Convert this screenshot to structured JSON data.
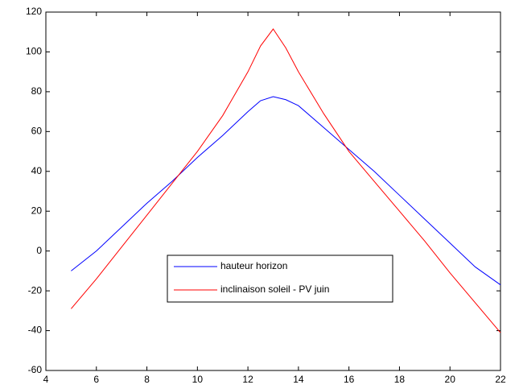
{
  "chart_data": {
    "type": "line",
    "x": [
      5,
      6,
      7,
      8,
      9,
      10,
      11,
      12,
      12.5,
      13,
      13.5,
      14,
      15,
      16,
      17,
      18,
      19,
      20,
      21,
      22
    ],
    "series": [
      {
        "name": "hauteur horizon",
        "color": "#0000ff",
        "values": [
          -10,
          0,
          12,
          24,
          35,
          47,
          58,
          70,
          75.5,
          77.5,
          76,
          73,
          62,
          51,
          40,
          28,
          16,
          4,
          -8,
          -17
        ]
      },
      {
        "name": "inclinaison soleil - PV juin",
        "color": "#ff0000",
        "values": [
          -29,
          -14,
          2,
          18,
          34,
          50,
          68,
          90,
          103,
          111.5,
          102,
          90,
          69,
          50,
          35,
          20,
          5,
          -11,
          -26,
          -41
        ]
      }
    ],
    "xlim": [
      4,
      22
    ],
    "xticks": [
      4,
      6,
      8,
      10,
      12,
      14,
      16,
      18,
      20,
      22
    ],
    "ylim": [
      -60,
      120
    ],
    "yticks": [
      -60,
      -40,
      -20,
      0,
      20,
      40,
      60,
      80,
      100,
      120
    ],
    "grid": false
  }
}
